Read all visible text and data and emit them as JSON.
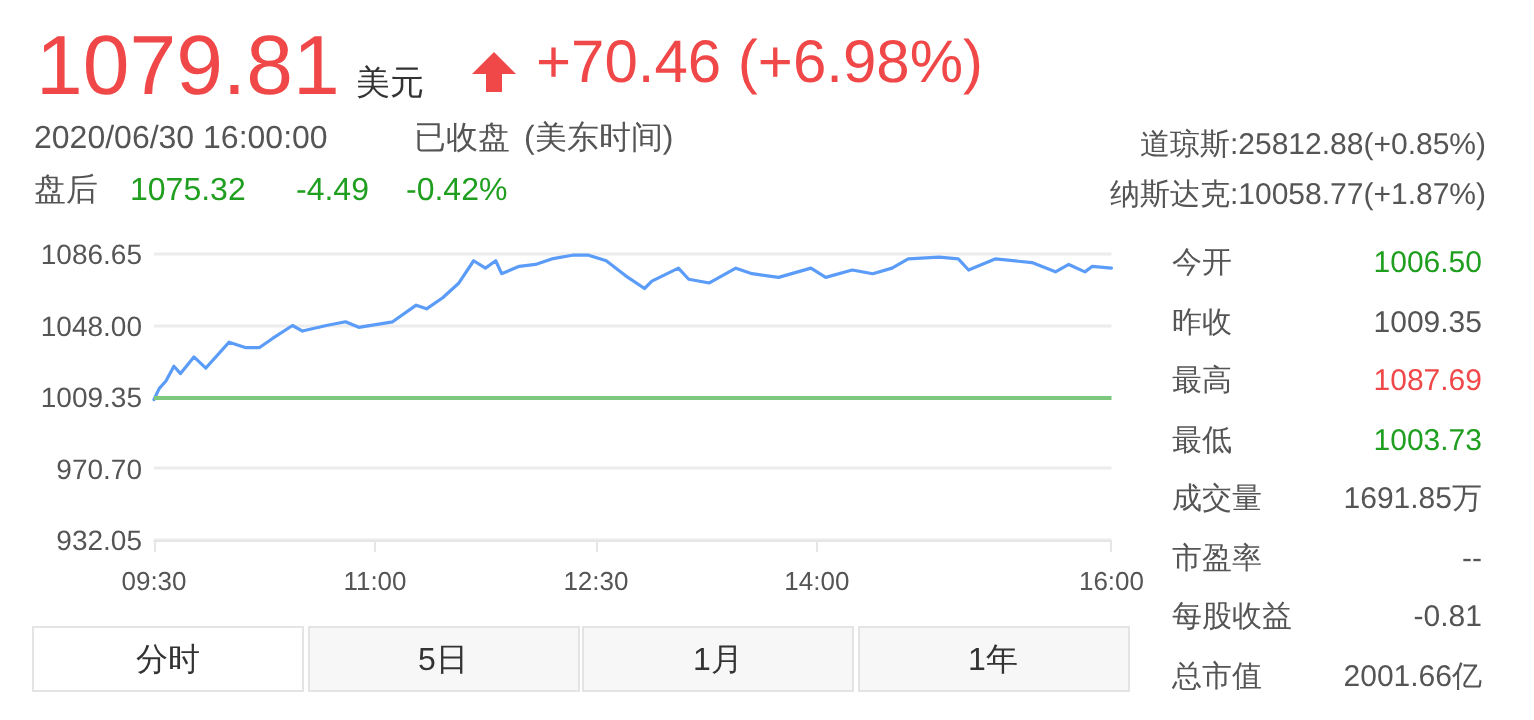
{
  "chart_data": {
    "type": "line",
    "annotations": [
      "1079.81",
      "美元",
      "+70.46 (+6.98%)",
      "2020/06/30 16:00:00",
      "已收盘",
      "(美东时间)",
      "盘后",
      "1075.32",
      "-4.49",
      "-0.42%",
      "道琼斯:25812.88(+0.85%)",
      "纳斯达克:10058.77(+1.87%)",
      "今开",
      "1006.50",
      "昨收",
      "1009.35",
      "最高",
      "1087.69",
      "最低",
      "1003.73",
      "成交量",
      "1691.85万",
      "市盈率",
      "--",
      "每股收益",
      "-0.81",
      "总市值",
      "2001.66亿",
      "分时",
      "5日",
      "1月",
      "1年"
    ],
    "series": [
      {
        "color": "#5b9cf8",
        "x": [
          9.5,
          9.536,
          9.581,
          9.635,
          9.68,
          9.771,
          9.852,
          10.01,
          10.124,
          10.214,
          10.305,
          10.44,
          10.508,
          10.67,
          10.8,
          10.89,
          11.12,
          11.28,
          11.35,
          11.46,
          11.57,
          11.67,
          11.75,
          11.82,
          11.86,
          11.98,
          12.09,
          12.2,
          12.34,
          12.45,
          12.57,
          12.7,
          12.83,
          12.88,
          13.06,
          13.13,
          13.27,
          13.45,
          13.56,
          13.74,
          13.96,
          14.06,
          14.24,
          14.38,
          14.51,
          14.62,
          14.83,
          14.96,
          15.03,
          15.21,
          15.46,
          15.62,
          15.71,
          15.82,
          15.87,
          16.0
        ],
        "values": [
          1008,
          1014,
          1018,
          1026,
          1022,
          1031,
          1025,
          1039,
          1036,
          1036,
          1041,
          1048,
          1045,
          1048,
          1050,
          1047,
          1050,
          1059,
          1057,
          1063,
          1071,
          1083,
          1079,
          1083,
          1076,
          1080,
          1081,
          1084,
          1086,
          1086,
          1083,
          1075,
          1068,
          1072,
          1079,
          1073,
          1071,
          1079,
          1076,
          1074,
          1079,
          1074,
          1078,
          1076,
          1079,
          1084,
          1085,
          1084,
          1078,
          1084,
          1082,
          1077,
          1081,
          1077,
          1080,
          1079
        ]
      }
    ],
    "xlim": [
      9.5,
      16
    ],
    "xticks": [
      {
        "value": 9.5,
        "label": "09:30"
      },
      {
        "value": 11,
        "label": "11:00"
      },
      {
        "value": 12.5,
        "label": "12:30"
      },
      {
        "value": 14,
        "label": "14:00"
      },
      {
        "value": 16,
        "label": "16:00"
      }
    ],
    "ylim": [
      932.05,
      1086.65
    ],
    "yticks": [
      932.05,
      {
        "value": 970.7,
        "label": "970.70"
      },
      1009.35,
      {
        "value": 1048,
        "label": "1048.00"
      },
      1086.65
    ],
    "ref_lines": [
      {
        "axis": "y",
        "value": 1009.35,
        "color": "#7dc87d"
      }
    ],
    "grid": "y",
    "marker": "none",
    "line_style": "solid"
  }
}
